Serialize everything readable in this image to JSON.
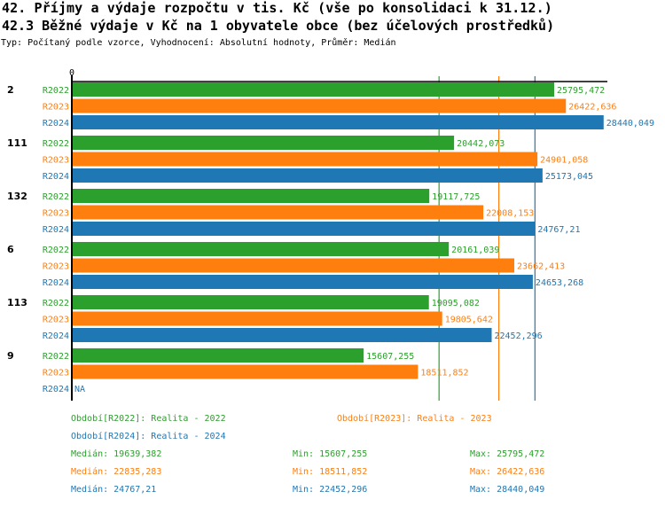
{
  "header": {
    "title": "42. Příjmy a výdaje rozpočtu v tis. Kč (vše po konsolidaci k 31.12.)",
    "subtitle": "42.3 Běžné výdaje v Kč na 1 obyvatele obce (bez účelových prostředků)",
    "type_line": "Typ: Počítaný podle vzorce, Vyhodnocení: Absolutní hodnoty, Průměr: Medián"
  },
  "colors": {
    "R2022": "#2ca02c",
    "R2023": "#ff7f0e",
    "R2024": "#1f77b4"
  },
  "chart_data": {
    "type": "bar",
    "orientation": "horizontal",
    "title": "42.3 Běžné výdaje v Kč na 1 obyvatele obce (bez účelových prostředků)",
    "xlabel": "",
    "ylabel": "",
    "x_tick_labels": [
      "0"
    ],
    "xlim": [
      0,
      28640
    ],
    "categories": [
      "2",
      "111",
      "132",
      "6",
      "113",
      "9"
    ],
    "series": [
      {
        "name": "R2022",
        "values": [
          25795.472,
          20442.073,
          19117.725,
          20161.039,
          19095.082,
          15607.255
        ],
        "labels": [
          "25795,472",
          "20442,073",
          "19117,725",
          "20161,039",
          "19095,082",
          "15607,255"
        ]
      },
      {
        "name": "R2023",
        "values": [
          26422.636,
          24901.058,
          22008.153,
          23662.413,
          19805.642,
          18511.852
        ],
        "labels": [
          "26422,636",
          "24901,058",
          "22008,153",
          "23662,413",
          "19805,642",
          "18511,852"
        ]
      },
      {
        "name": "R2024",
        "values": [
          28440.049,
          25173.045,
          24767.21,
          24653.268,
          22452.296,
          null
        ],
        "labels": [
          "28440,049",
          "25173,045",
          "24767,21",
          "24653,268",
          "22452,296",
          "NA"
        ]
      }
    ],
    "median_lines": {
      "R2022": 19639.382,
      "R2023": 22835.283,
      "R2024": 24767.21
    },
    "legend": [
      {
        "series": "R2022",
        "text": "Období[R2022]: Realita - 2022"
      },
      {
        "series": "R2023",
        "text": "Období[R2023]: Realita - 2023"
      },
      {
        "series": "R2024",
        "text": "Období[R2024]: Realita - 2024"
      }
    ],
    "stats": [
      {
        "series": "R2022",
        "median": "Medián: 19639,382",
        "min": "Min: 15607,255",
        "max": "Max: 25795,472"
      },
      {
        "series": "R2023",
        "median": "Medián: 22835,283",
        "min": "Min: 18511,852",
        "max": "Max: 26422,636"
      },
      {
        "series": "R2024",
        "median": "Medián: 24767,21",
        "min": "Min: 22452,296",
        "max": "Max: 28440,049"
      }
    ],
    "legend_position": "bottom"
  }
}
